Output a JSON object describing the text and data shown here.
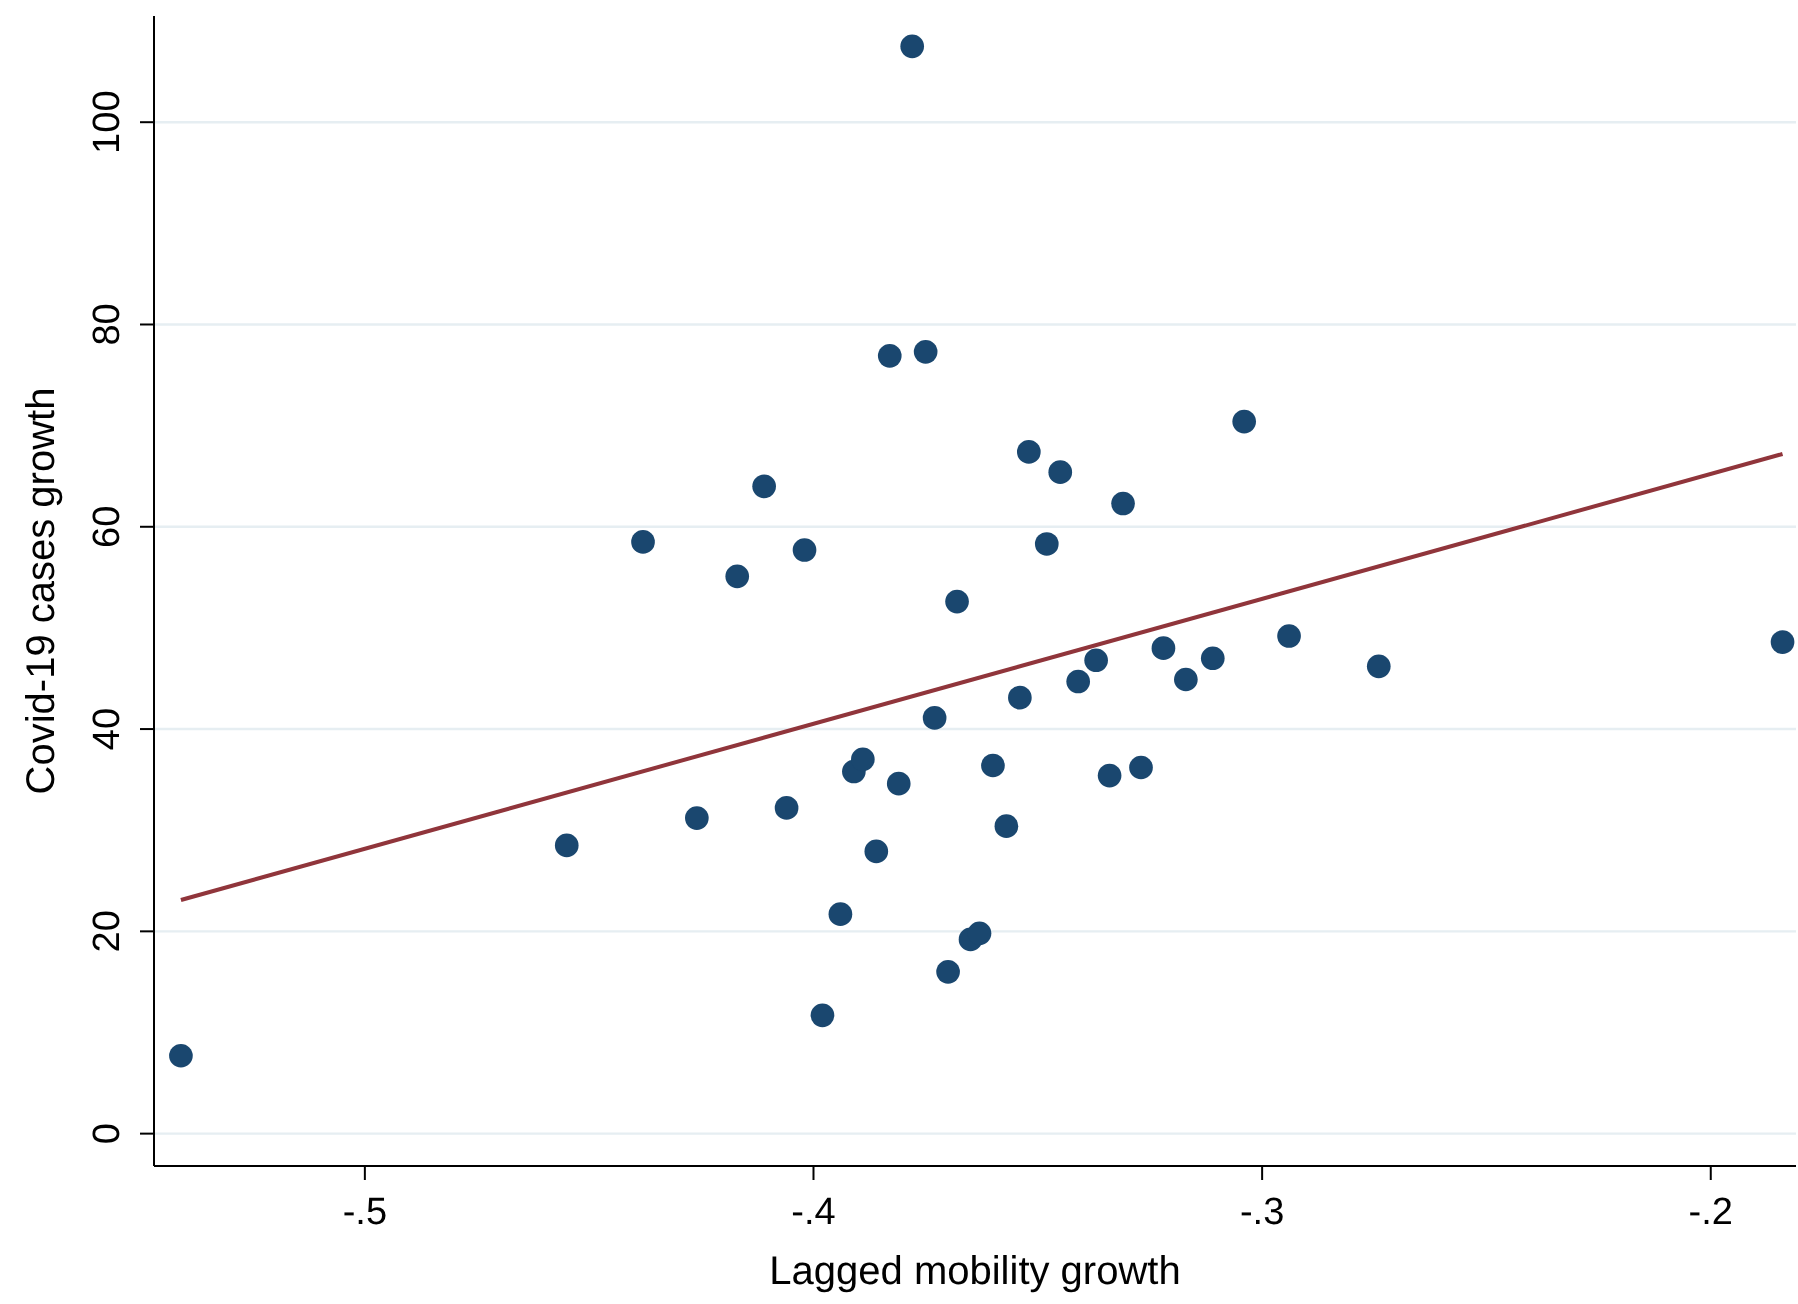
{
  "chart_data": {
    "type": "scatter",
    "xlabel": "Lagged mobility growth",
    "ylabel": "Covid-19 cases growth",
    "xlim": [
      -0.547,
      -0.181
    ],
    "ylim": [
      -3.2,
      110.5
    ],
    "xticks": [
      {
        "value": -0.5,
        "label": "-.5"
      },
      {
        "value": -0.4,
        "label": "-.4"
      },
      {
        "value": -0.3,
        "label": "-.3"
      },
      {
        "value": -0.2,
        "label": "-.2"
      }
    ],
    "yticks": [
      0,
      20,
      40,
      60,
      80,
      100
    ],
    "grid": "y",
    "marker": "circle",
    "series": [
      {
        "color": "#1a476f",
        "x": [
          -0.541,
          -0.455,
          -0.438,
          -0.426,
          -0.417,
          -0.411,
          -0.406,
          -0.402,
          -0.398,
          -0.394,
          -0.391,
          -0.389,
          -0.386,
          -0.383,
          -0.381,
          -0.378,
          -0.375,
          -0.373,
          -0.37,
          -0.368,
          -0.365,
          -0.363,
          -0.36,
          -0.357,
          -0.354,
          -0.352,
          -0.348,
          -0.345,
          -0.341,
          -0.337,
          -0.334,
          -0.331,
          -0.327,
          -0.322,
          -0.317,
          -0.311,
          -0.304,
          -0.294,
          -0.274,
          -0.184
        ],
        "values": [
          7.7,
          28.5,
          58.5,
          31.2,
          55.1,
          64.0,
          32.2,
          57.7,
          11.7,
          21.7,
          35.8,
          37.0,
          27.9,
          76.9,
          34.6,
          107.5,
          77.3,
          41.1,
          16.0,
          52.6,
          19.2,
          19.8,
          36.4,
          30.4,
          43.1,
          67.4,
          58.3,
          65.4,
          44.7,
          46.8,
          35.4,
          62.3,
          36.2,
          48.0,
          44.9,
          47.0,
          70.4,
          49.2,
          46.2,
          48.6
        ]
      },
      {
        "type": "line",
        "color": "#90353b",
        "marker": "none",
        "x": [
          -0.541,
          -0.184
        ],
        "values": [
          23.1,
          67.2
        ]
      }
    ]
  }
}
